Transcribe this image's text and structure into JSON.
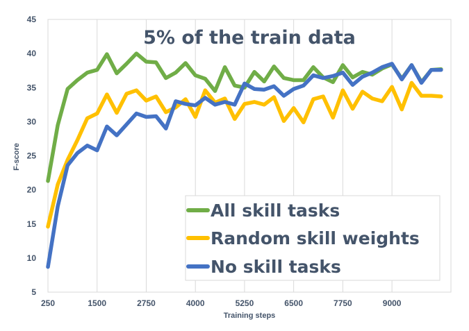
{
  "chart_data": {
    "type": "line",
    "title": "5% of the train data",
    "xlabel": "Training steps",
    "ylabel": "F-score",
    "xlim": [
      250,
      10500
    ],
    "ylim": [
      5,
      45
    ],
    "grid": "vertical",
    "legend_position": "bottom-right",
    "x_ticks": [
      "250",
      "1500",
      "2750",
      "4000",
      "5250",
      "6500",
      "7750",
      "9000"
    ],
    "y_ticks": [
      "5",
      "10",
      "15",
      "20",
      "25",
      "30",
      "35",
      "40",
      "45"
    ],
    "x": [
      250,
      500,
      750,
      1000,
      1250,
      1500,
      1750,
      2000,
      2250,
      2500,
      2750,
      3000,
      3250,
      3500,
      3750,
      4000,
      4250,
      4500,
      4750,
      5000,
      5250,
      5500,
      5750,
      6000,
      6250,
      6500,
      6750,
      7000,
      7250,
      7500,
      7750,
      8000,
      8250,
      8500,
      8750,
      9000,
      9250,
      9500,
      9750,
      10000,
      10250
    ],
    "series": [
      {
        "name": "All skill tasks",
        "color": "#70ad47",
        "values": [
          21.3,
          29.5,
          34.8,
          36.1,
          37.2,
          37.6,
          39.9,
          37.1,
          38.5,
          40.0,
          38.8,
          38.7,
          36.4,
          37.2,
          38.6,
          36.8,
          36.3,
          34.5,
          38.0,
          35.3,
          35.0,
          37.3,
          35.9,
          38.1,
          36.4,
          36.1,
          36.1,
          38.0,
          36.5,
          35.8,
          38.3,
          36.5,
          37.3,
          36.9,
          37.8,
          38.4,
          36.3,
          38.3,
          35.8,
          37.6,
          37.7
        ]
      },
      {
        "name": "Random  skill weights",
        "color": "#ffc000",
        "values": [
          14.6,
          20.8,
          24.4,
          27.3,
          30.5,
          31.2,
          34.0,
          31.3,
          34.1,
          34.6,
          33.1,
          33.7,
          31.4,
          32.1,
          33.3,
          30.7,
          34.6,
          32.8,
          33.4,
          30.4,
          32.6,
          32.9,
          32.5,
          33.6,
          30.1,
          32.0,
          29.9,
          33.3,
          33.7,
          30.6,
          34.6,
          31.9,
          34.4,
          33.4,
          33.0,
          35.1,
          31.8,
          35.7,
          33.8,
          33.8,
          33.7
        ]
      },
      {
        "name": "No skill tasks",
        "color": "#4472c4",
        "values": [
          8.7,
          17.6,
          23.6,
          25.4,
          26.5,
          25.8,
          29.3,
          28.0,
          29.6,
          31.2,
          30.7,
          30.8,
          29.0,
          33.0,
          32.6,
          32.4,
          33.5,
          32.5,
          32.9,
          32.5,
          35.6,
          34.8,
          34.7,
          35.2,
          33.8,
          34.8,
          35.3,
          36.8,
          36.4,
          36.7,
          37.2,
          35.4,
          36.6,
          37.2,
          38.0,
          38.5,
          36.2,
          38.3,
          35.7,
          37.6,
          37.6
        ]
      }
    ]
  }
}
